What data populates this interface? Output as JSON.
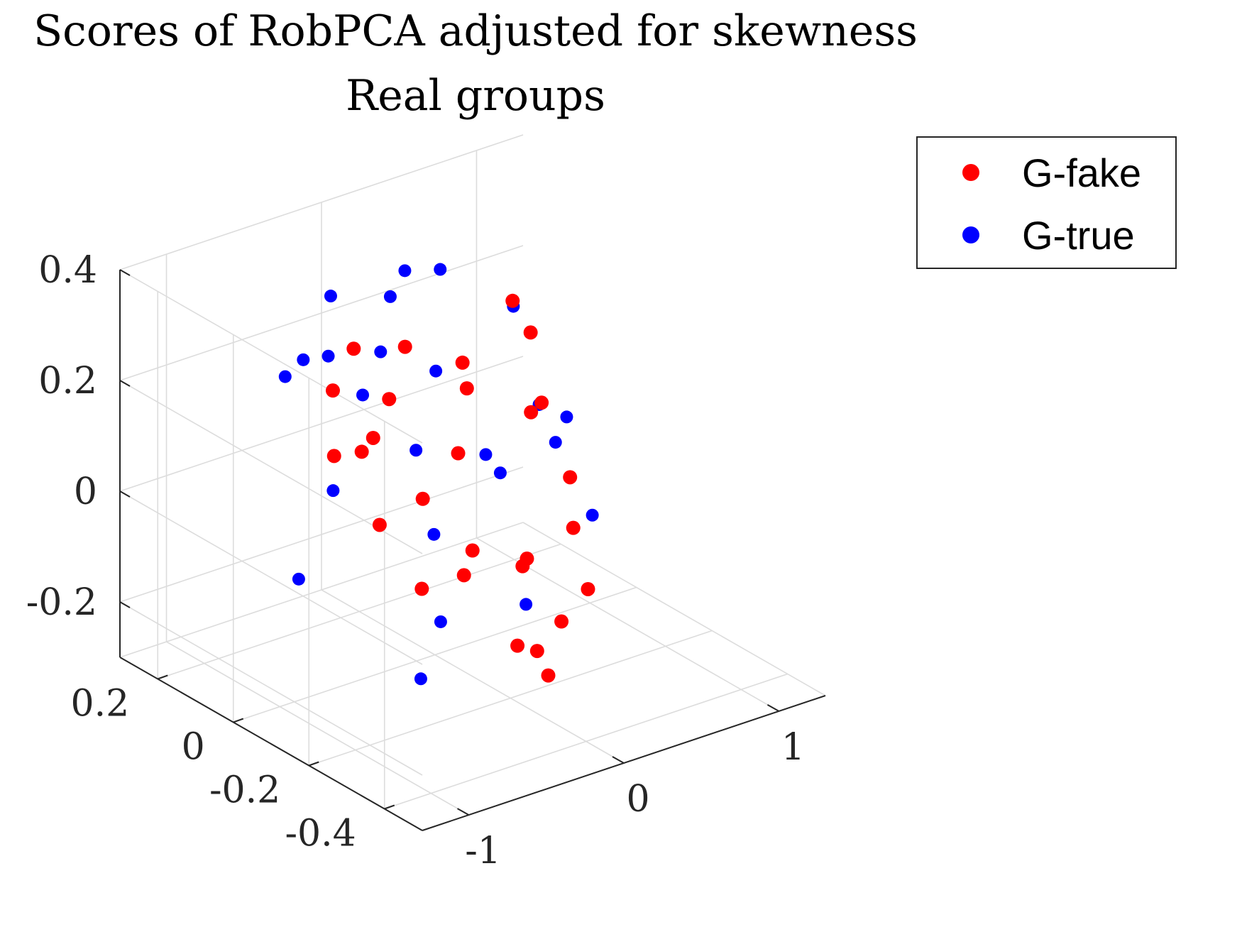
{
  "chart_data": {
    "type": "scatter",
    "title": "Scores of RobPCA adjusted for skewness",
    "subtitle": "Real groups",
    "xlabel": "",
    "ylabel": "",
    "zlabel": "",
    "grid": true,
    "legend_location": "top-right",
    "axes": {
      "x": {
        "range": [
          -1.3,
          1.3
        ],
        "ticks": [
          -1,
          0,
          1
        ],
        "tick_labels": [
          "-1",
          "0",
          "1"
        ]
      },
      "y": {
        "range": [
          -0.5,
          0.3
        ],
        "ticks": [
          -0.4,
          -0.2,
          0,
          0.2
        ],
        "tick_labels": [
          "-0.4",
          "-0.2",
          "0",
          "0.2"
        ]
      },
      "z": {
        "range": [
          -0.3,
          0.4
        ],
        "ticks": [
          -0.2,
          0,
          0.2,
          0.4
        ],
        "tick_labels": [
          "-0.2",
          "0",
          "0.2",
          "0.4"
        ]
      }
    },
    "series": [
      {
        "name": "G-fake",
        "color": "#ff0000",
        "points": [
          [
            -0.78,
            -0.05,
            0.27
          ],
          [
            0.55,
            0.02,
            0.28
          ],
          [
            -0.28,
            0.1,
            0.24
          ],
          [
            0.91,
            0.12,
            0.15
          ],
          [
            -0.52,
            -0.05,
            0.16
          ],
          [
            0.3,
            0.05,
            0.18
          ],
          [
            -0.1,
            0.08,
            0.14
          ],
          [
            0.62,
            0.0,
            0.08
          ],
          [
            -0.6,
            -0.1,
            0.03
          ],
          [
            0.81,
            0.05,
            0.06
          ],
          [
            -0.3,
            -0.2,
            -0.05
          ],
          [
            0.2,
            -0.15,
            -0.1
          ],
          [
            -0.15,
            -0.28,
            -0.16
          ],
          [
            0.35,
            -0.1,
            -0.12
          ],
          [
            0.75,
            -0.05,
            -0.03
          ],
          [
            -0.45,
            -0.15,
            -0.08
          ],
          [
            0.05,
            -0.25,
            -0.2
          ],
          [
            0.5,
            -0.2,
            -0.15
          ],
          [
            -0.2,
            -0.05,
            0.02
          ],
          [
            0.15,
            0.0,
            0.05
          ],
          [
            0.45,
            0.1,
            0.1
          ],
          [
            -0.65,
            0.0,
            0.12
          ],
          [
            0.0,
            -0.3,
            -0.22
          ],
          [
            0.28,
            -0.22,
            -0.18
          ],
          [
            -0.05,
            -0.12,
            -0.06
          ],
          [
            0.6,
            -0.12,
            -0.08
          ],
          [
            -0.35,
            0.05,
            0.08
          ],
          [
            0.1,
            0.12,
            0.2
          ]
        ]
      },
      {
        "name": "G-true",
        "color": "#0000ff",
        "points": [
          [
            -0.55,
            0.05,
            0.38
          ],
          [
            0.05,
            0.1,
            0.35
          ],
          [
            -0.8,
            0.02,
            0.3
          ],
          [
            0.4,
            0.15,
            0.3
          ],
          [
            -0.35,
            0.0,
            0.28
          ],
          [
            0.75,
            0.1,
            0.22
          ],
          [
            -0.9,
            -0.1,
            0.12
          ],
          [
            0.2,
            0.2,
            0.25
          ],
          [
            -0.6,
            0.15,
            0.2
          ],
          [
            0.55,
            -0.05,
            0.12
          ],
          [
            -0.2,
            0.2,
            0.18
          ],
          [
            0.85,
            0.0,
            0.05
          ],
          [
            -1.0,
            -0.05,
            -0.05
          ],
          [
            0.3,
            -0.05,
            0.02
          ],
          [
            -0.45,
            -0.2,
            -0.12
          ],
          [
            0.65,
            -0.15,
            -0.05
          ],
          [
            0.0,
            0.05,
            0.05
          ],
          [
            -0.7,
            -0.25,
            -0.18
          ],
          [
            0.45,
            0.05,
            0.0
          ],
          [
            -0.25,
            -0.1,
            -0.02
          ],
          [
            0.1,
            -0.2,
            -0.14
          ],
          [
            0.9,
            0.05,
            -0.02
          ],
          [
            -0.1,
            0.15,
            0.12
          ],
          [
            0.25,
            0.1,
            0.15
          ]
        ]
      }
    ]
  },
  "legend": {
    "entries": [
      {
        "label": "G-fake",
        "color": "#ff0000"
      },
      {
        "label": "G-true",
        "color": "#0000ff"
      }
    ]
  }
}
